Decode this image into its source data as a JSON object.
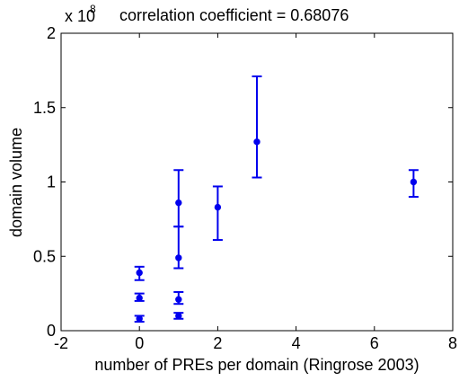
{
  "chart_data": {
    "type": "scatter",
    "title": "correlation coefficient = 0.68076",
    "xlabel": "number of PREs per domain (Ringrose 2003)",
    "ylabel": "domain volume",
    "y_exponent_label": "x 10",
    "y_exponent_power": "8",
    "xlim": [
      -2,
      8
    ],
    "ylim": [
      0,
      2
    ],
    "x_ticks": [
      -2,
      0,
      2,
      4,
      6,
      8
    ],
    "x_tick_labels": [
      "-2",
      "0",
      "2",
      "4",
      "6",
      "8"
    ],
    "y_ticks": [
      0,
      0.5,
      1,
      1.5,
      2
    ],
    "y_tick_labels": [
      "0",
      "0.5",
      "1",
      "1.5",
      "2"
    ],
    "grid": false,
    "color": "#0000ee",
    "series": [
      {
        "points": [
          {
            "x": 0,
            "y": 0.08,
            "lower": 0.06,
            "upper": 0.1
          },
          {
            "x": 0,
            "y": 0.22,
            "lower": 0.2,
            "upper": 0.25
          },
          {
            "x": 0,
            "y": 0.39,
            "lower": 0.34,
            "upper": 0.43
          },
          {
            "x": 1,
            "y": 0.1,
            "lower": 0.08,
            "upper": 0.12
          },
          {
            "x": 1,
            "y": 0.21,
            "lower": 0.18,
            "upper": 0.26
          },
          {
            "x": 1,
            "y": 0.49,
            "lower": 0.42,
            "upper": 0.7
          },
          {
            "x": 1,
            "y": 0.86,
            "lower": 0.7,
            "upper": 1.08
          },
          {
            "x": 2,
            "y": 0.83,
            "lower": 0.61,
            "upper": 0.97
          },
          {
            "x": 3,
            "y": 1.27,
            "lower": 1.03,
            "upper": 1.71
          },
          {
            "x": 7,
            "y": 1.0,
            "lower": 0.9,
            "upper": 1.08
          }
        ]
      }
    ]
  }
}
